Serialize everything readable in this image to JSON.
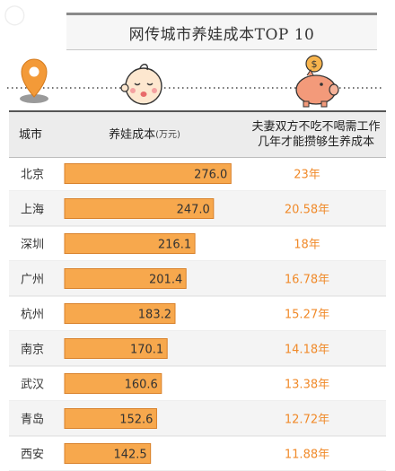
{
  "title": "网传城市养娃成本TOP 10",
  "header": {
    "city": "城市",
    "cost": "养娃成本",
    "cost_unit": "(万元)",
    "years_line1": "夫妻双方不吃不喝需工作",
    "years_line2": "几年才能攒够生养成本"
  },
  "icons": [
    "map-pin-icon",
    "baby-face-icon",
    "piggy-bank-icon"
  ],
  "colors": {
    "bar": "#f7a84d",
    "bar_border": "#d9812a",
    "years_text": "#f08a2a",
    "row_alt": "#f4f4f4"
  },
  "chart_data": {
    "type": "bar",
    "orientation": "horizontal",
    "categories": [
      "北京",
      "上海",
      "深圳",
      "广州",
      "杭州",
      "南京",
      "武汉",
      "青岛",
      "西安"
    ],
    "values": [
      276.0,
      247.0,
      216.1,
      201.4,
      183.2,
      170.1,
      160.6,
      152.6,
      142.5
    ],
    "value_labels": [
      "276.0",
      "247.0",
      "216.1",
      "201.4",
      "183.2",
      "170.1",
      "160.6",
      "152.6",
      "142.5"
    ],
    "years_labels": [
      "23年",
      "20.58年",
      "18年",
      "16.78年",
      "15.27年",
      "14.18年",
      "13.38年",
      "12.72年",
      "11.88年"
    ],
    "xlim": [
      0,
      280
    ]
  }
}
